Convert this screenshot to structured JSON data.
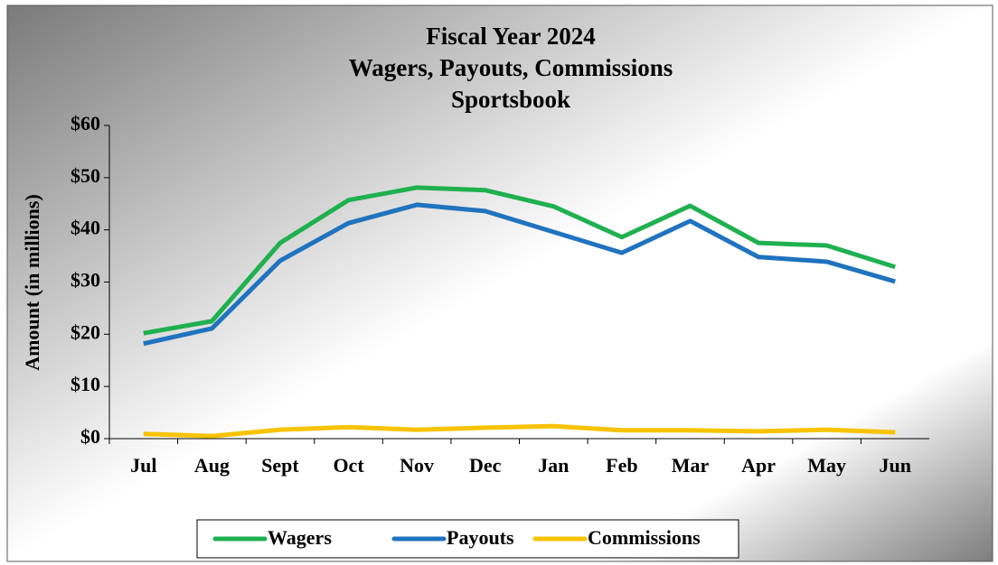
{
  "chart_data": {
    "type": "line",
    "title": [
      "Fiscal Year 2024",
      "Wagers,  Payouts, Commissions",
      "Sportsbook"
    ],
    "y_label": "Amount (in millions)",
    "categories": [
      "Jul",
      "Aug",
      "Sept",
      "Oct",
      "Nov",
      "Dec",
      "Jan",
      "Feb",
      "Mar",
      "Apr",
      "May",
      "Jun"
    ],
    "series": [
      {
        "name": "Wagers",
        "color": "#1fb04f",
        "values": [
          20.2,
          22.5,
          37.5,
          45.7,
          48.1,
          47.6,
          44.5,
          38.6,
          44.6,
          37.5,
          37.0,
          32.9
        ]
      },
      {
        "name": "Payouts",
        "color": "#1f73bf",
        "values": [
          18.2,
          21.1,
          34.1,
          41.3,
          44.8,
          43.6,
          39.6,
          35.6,
          41.7,
          34.8,
          33.9,
          30.1
        ]
      },
      {
        "name": "Commissions",
        "color": "#f7c300",
        "values": [
          0.9,
          0.5,
          1.7,
          2.2,
          1.7,
          2.1,
          2.4,
          1.6,
          1.6,
          1.4,
          1.7,
          1.2
        ]
      }
    ],
    "ylim": [
      0,
      60
    ],
    "yticks": [
      {
        "value": 0,
        "label": "$0"
      },
      {
        "value": 10,
        "label": "$10"
      },
      {
        "value": 20,
        "label": "$20"
      },
      {
        "value": 30,
        "label": "$30"
      },
      {
        "value": 40,
        "label": "$40"
      },
      {
        "value": 50,
        "label": "$50"
      },
      {
        "value": 60,
        "label": "$60"
      }
    ],
    "legend": "bottom"
  }
}
